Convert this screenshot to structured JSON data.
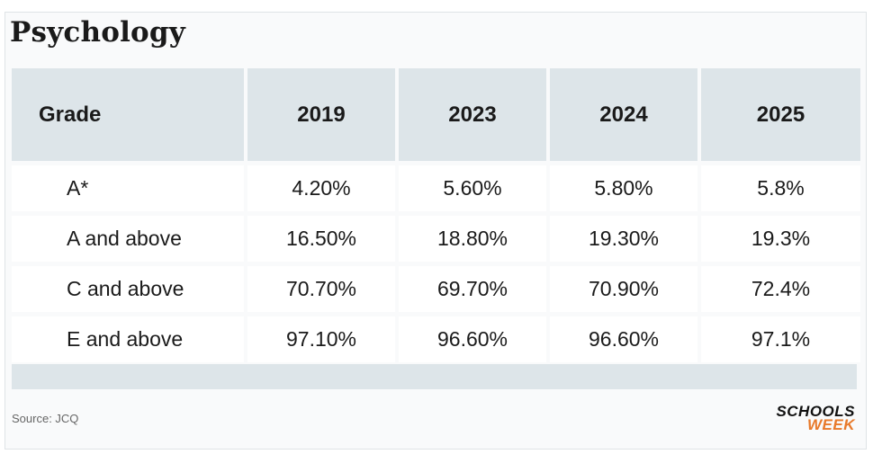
{
  "title": "Psychology",
  "source": "Source: JCQ",
  "logo": {
    "line1": "SCHOOLS",
    "line2": "WEEK"
  },
  "chart_data": {
    "type": "table",
    "title": "Psychology",
    "columns": [
      "Grade",
      "2019",
      "2023",
      "2024",
      "2025"
    ],
    "rows": [
      [
        "A*",
        "4.20%",
        "5.60%",
        "5.80%",
        "5.8%"
      ],
      [
        "A and above",
        "16.50%",
        "18.80%",
        "19.30%",
        "19.3%"
      ],
      [
        "C and above",
        "70.70%",
        "69.70%",
        "70.90%",
        "72.4%"
      ],
      [
        "E and above",
        "97.10%",
        "96.60%",
        "96.60%",
        "97.1%"
      ]
    ]
  },
  "colors": {
    "header_bg": "#dde5e9",
    "accent": "#e8792a",
    "text": "#1a1a1a"
  }
}
